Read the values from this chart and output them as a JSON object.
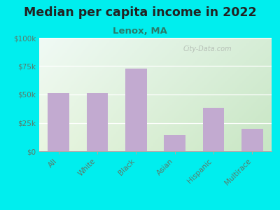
{
  "title": "Median per capita income in 2022",
  "subtitle": "Lenox, MA",
  "categories": [
    "All",
    "White",
    "Black",
    "Asian",
    "Hispanic",
    "Multirace"
  ],
  "values": [
    51000,
    51000,
    73000,
    14000,
    38000,
    20000
  ],
  "bar_color": "#c2aad0",
  "background_outer": "#00EEEE",
  "gradient_top_left": "#d6edd6",
  "gradient_top_right": "#f0faf5",
  "gradient_bottom_left": "#c8e6c4",
  "gradient_bottom_right": "#e8f5e0",
  "ylim": [
    0,
    100000
  ],
  "yticks": [
    0,
    25000,
    50000,
    75000,
    100000
  ],
  "ytick_labels": [
    "$0",
    "$25k",
    "$50k",
    "$75k",
    "$100k"
  ],
  "title_fontsize": 12.5,
  "subtitle_fontsize": 9.5,
  "title_color": "#222222",
  "subtitle_color": "#2a7a6a",
  "tick_color": "#5a7a6a",
  "watermark": "City-Data.com",
  "grid_color": "#ffffff",
  "spine_color": "#aaaaaa"
}
